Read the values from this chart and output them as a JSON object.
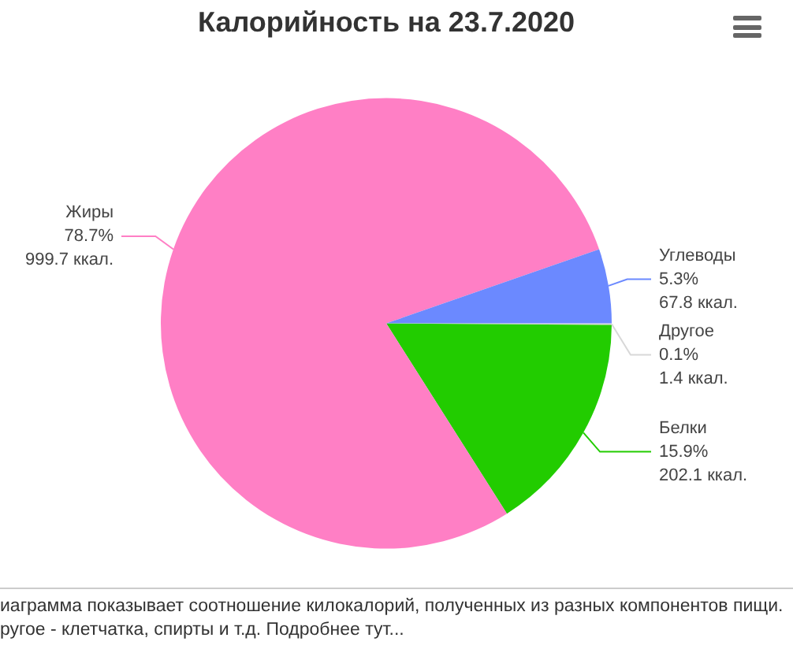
{
  "chart_data": {
    "type": "pie",
    "title": "Калорийность на 23.7.2020",
    "categories": [
      "Другое",
      "Белки",
      "Жиры",
      "Углеводы"
    ],
    "values": [
      1.4,
      202.1,
      999.7,
      67.8
    ],
    "colors": [
      "#d8d8d8",
      "#22cc00",
      "#ff7fc5",
      "#6b89ff"
    ],
    "value_labels": [
      "0.1%\n1.4 ккал.",
      "15.9%\n202.1 ккал.",
      "78.7%\n999.7 ккал.",
      "5.3%\n67.8 ккал."
    ],
    "legend": false,
    "annotations": [
      "иаграмма показывает соотношение килокалорий, полученных из разных компонентов пищи.",
      "ругое - клетчатка, спирты и т.д. Подробнее тут..."
    ]
  }
}
